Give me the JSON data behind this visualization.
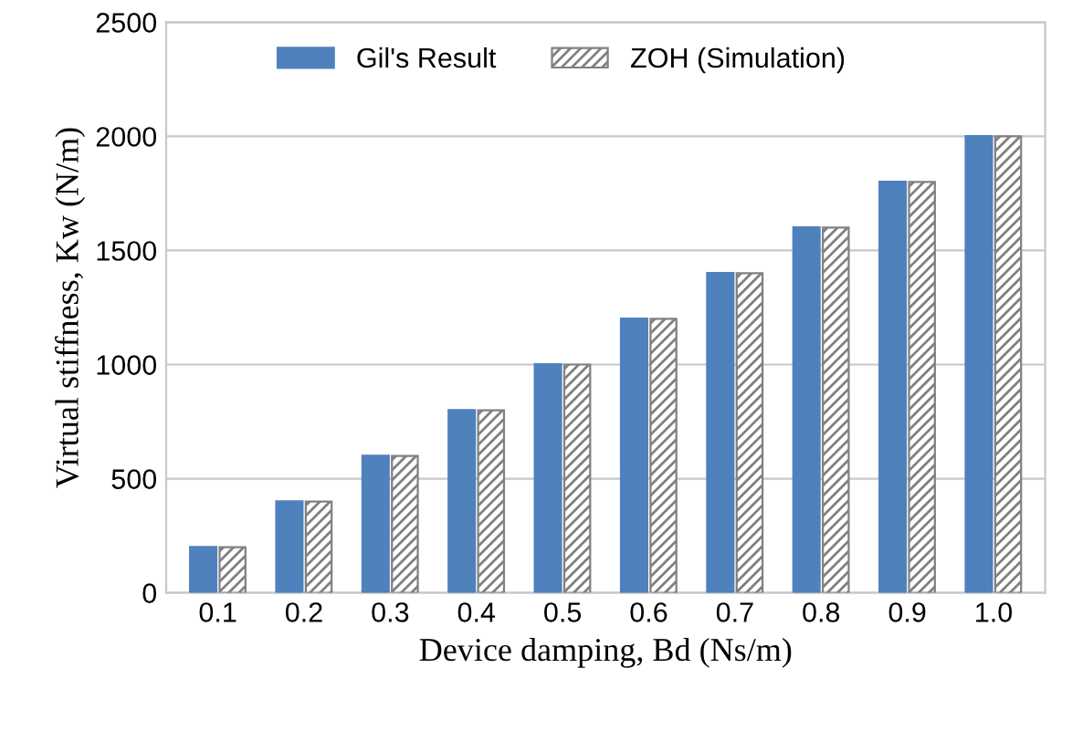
{
  "chart_data": {
    "type": "bar",
    "xlabel": "Device damping, Bd (Ns/m)",
    "ylabel": "Virtual stiffness, Kw (N/m)",
    "categories": [
      "0.1",
      "0.2",
      "0.3",
      "0.4",
      "0.5",
      "0.6",
      "0.7",
      "0.8",
      "0.9",
      "1.0"
    ],
    "series": [
      {
        "name": "Gil's Result",
        "color": "#4f81bd",
        "values": [
          200,
          400,
          600,
          800,
          1000,
          1200,
          1400,
          1600,
          1800,
          2000
        ]
      },
      {
        "name": "ZOH (Simulation)",
        "color": "#808080",
        "values": [
          200,
          400,
          600,
          800,
          1000,
          1200,
          1400,
          1600,
          1800,
          2000
        ]
      }
    ],
    "ylim": [
      0,
      2500
    ],
    "yticks": [
      0,
      500,
      1000,
      1500,
      2000,
      2500
    ],
    "grid": "y",
    "legend": "top"
  }
}
